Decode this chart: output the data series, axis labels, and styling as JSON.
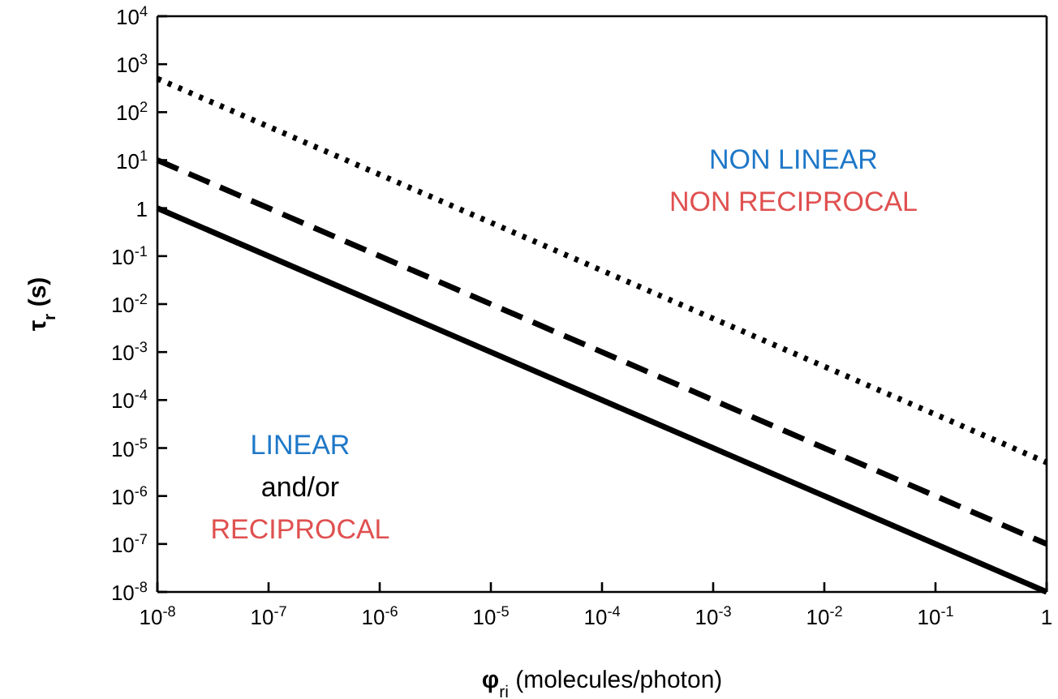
{
  "chart_data": {
    "type": "line",
    "xlabel": "φ$_{ri}$ (molecules/photon)",
    "ylabel": "τ$_{r}$ (s)",
    "log": "xy",
    "grid": false,
    "marker": "none",
    "x": [
      1e-08,
      1
    ],
    "xlim": [
      1e-08,
      1
    ],
    "ylim": [
      1e-08,
      10000
    ],
    "xticks": [
      {
        "value": 1e-08,
        "label": "10$^{-8}$"
      },
      {
        "value": 1e-07,
        "label": "10$^{-7}$"
      },
      {
        "value": 1e-06,
        "label": "10$^{-6}$"
      },
      {
        "value": 1e-05,
        "label": "10$^{-5}$"
      },
      {
        "value": 0.0001,
        "label": "10$^{-4}$"
      },
      {
        "value": 0.001,
        "label": "10$^{-3}$"
      },
      {
        "value": 0.01,
        "label": "10$^{-2}$"
      },
      {
        "value": 0.1,
        "label": "10$^{-1}$"
      },
      1
    ],
    "yticks": [
      {
        "value": 1e-08,
        "label": "10$^{-8}$"
      },
      {
        "value": 1e-07,
        "label": "10$^{-7}$"
      },
      {
        "value": 1e-06,
        "label": "10$^{-6}$"
      },
      {
        "value": 1e-05,
        "label": "10$^{-5}$"
      },
      {
        "value": 0.0001,
        "label": "10$^{-4}$"
      },
      {
        "value": 0.001,
        "label": "10$^{-3}$"
      },
      {
        "value": 0.01,
        "label": "10$^{-2}$"
      },
      {
        "value": 0.1,
        "label": "10$^{-1}$"
      },
      1,
      {
        "value": 10,
        "label": "10$^{1}$"
      },
      {
        "value": 100,
        "label": "10$^{2}$"
      },
      {
        "value": 1000,
        "label": "10$^{3}$"
      },
      {
        "value": 10000,
        "label": "10$^{4}$"
      }
    ],
    "series": [
      {
        "color": "#000000",
        "line_style": "solid",
        "values": [
          1,
          1e-08
        ]
      },
      {
        "color": "#000000",
        "line_style": "dashed",
        "values": [
          10,
          1e-07
        ]
      },
      {
        "color": "#000000",
        "line_style": "dotted",
        "values": [
          500,
          5e-06
        ]
      }
    ],
    "annotations": [
      "NON LINEAR",
      "NON RECIPROCAL",
      "LINEAR",
      "and/or",
      "RECIPROCAL"
    ]
  }
}
